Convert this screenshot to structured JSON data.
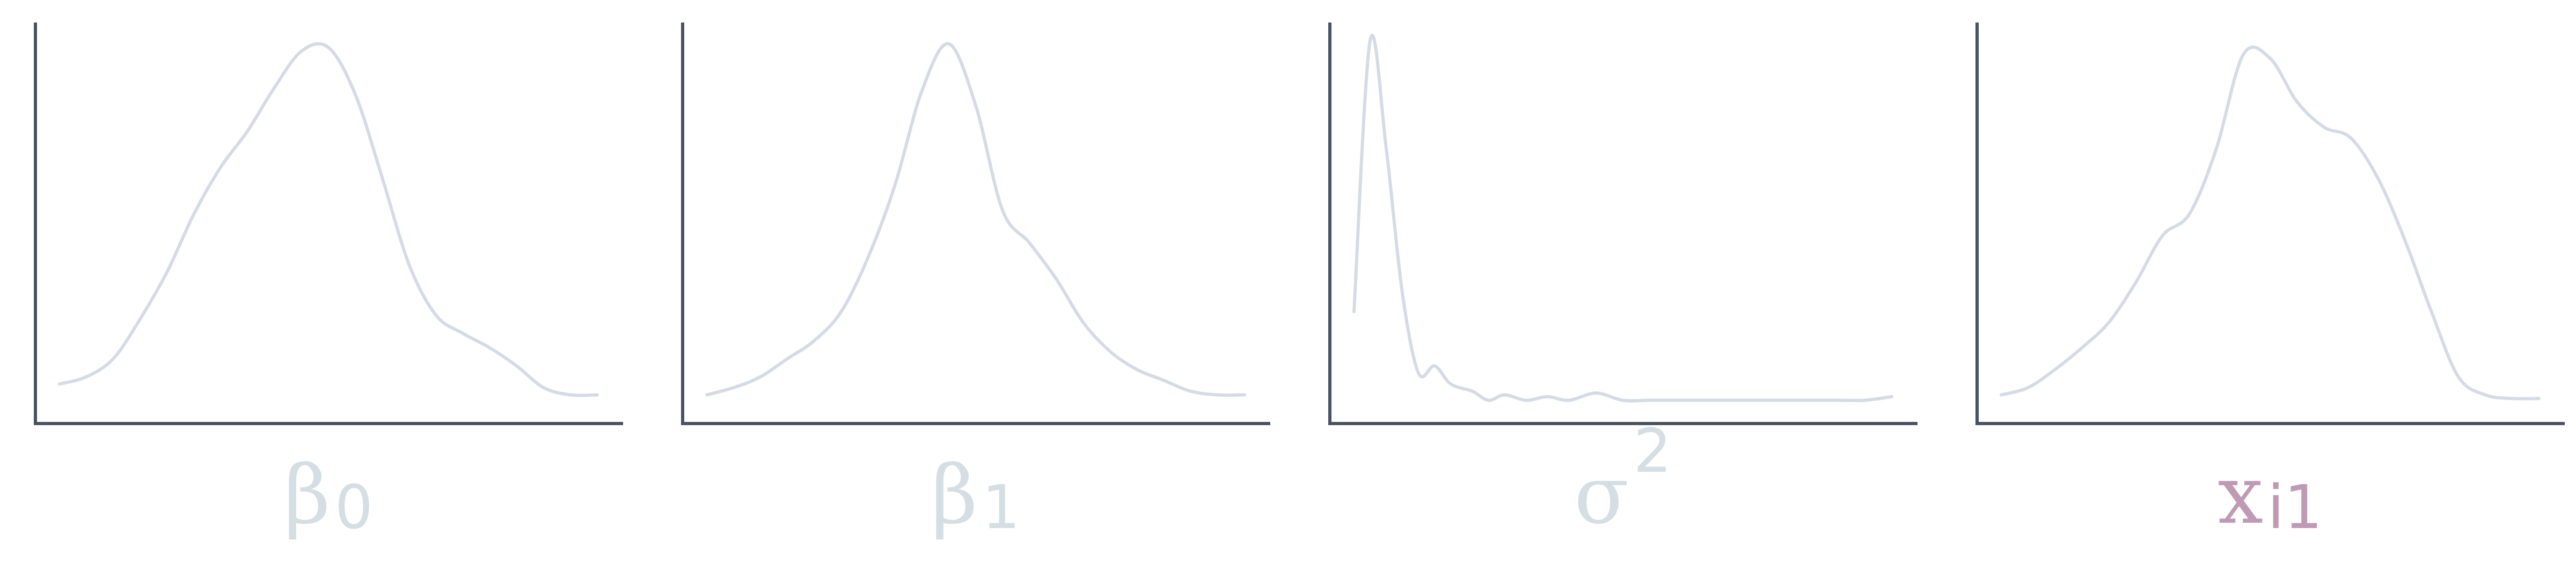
{
  "chart_data": [
    {
      "type": "line",
      "label": {
        "main": "β",
        "sub": "0",
        "sup": ""
      },
      "label_color": "#d5dee3",
      "color": "#d5dbe5",
      "x": [
        0,
        0.05,
        0.1,
        0.15,
        0.2,
        0.25,
        0.3,
        0.35,
        0.4,
        0.45,
        0.5,
        0.55,
        0.6,
        0.65,
        0.7,
        0.75,
        0.8,
        0.85,
        0.9,
        0.95,
        1
      ],
      "y": [
        0.05,
        0.07,
        0.12,
        0.23,
        0.36,
        0.52,
        0.65,
        0.75,
        0.87,
        0.97,
        0.98,
        0.85,
        0.62,
        0.38,
        0.24,
        0.19,
        0.15,
        0.1,
        0.04,
        0.02,
        0.02
      ]
    },
    {
      "type": "line",
      "label": {
        "main": "β",
        "sub": "1",
        "sup": ""
      },
      "label_color": "#d5dee3",
      "color": "#d5dbe5",
      "x": [
        0,
        0.05,
        0.1,
        0.15,
        0.2,
        0.25,
        0.3,
        0.35,
        0.4,
        0.45,
        0.5,
        0.55,
        0.6,
        0.65,
        0.7,
        0.75,
        0.8,
        0.85,
        0.9,
        0.95,
        1
      ],
      "y": [
        0.02,
        0.04,
        0.07,
        0.12,
        0.17,
        0.25,
        0.4,
        0.6,
        0.86,
        0.99,
        0.82,
        0.53,
        0.44,
        0.34,
        0.22,
        0.14,
        0.09,
        0.06,
        0.03,
        0.02,
        0.02
      ]
    },
    {
      "type": "line",
      "label": {
        "main": "σ",
        "sub": "",
        "sup": "2"
      },
      "label_color": "#d5dee3",
      "color": "#d5dbe5",
      "x": [
        0,
        0.03,
        0.06,
        0.09,
        0.12,
        0.15,
        0.18,
        0.22,
        0.25,
        0.28,
        0.32,
        0.36,
        0.4,
        0.45,
        0.5,
        0.55,
        0.6,
        0.7,
        0.8,
        0.9,
        0.95,
        1
      ],
      "y": [
        0.25,
        1.0,
        0.7,
        0.3,
        0.08,
        0.1,
        0.05,
        0.03,
        0.005,
        0.02,
        0.005,
        0.015,
        0.005,
        0.025,
        0.005,
        0.005,
        0.005,
        0.005,
        0.005,
        0.005,
        0.005,
        0.015
      ]
    },
    {
      "type": "line",
      "label": {
        "main": "x",
        "sub": "i1",
        "sup": ""
      },
      "label_color": "#bf9ab5",
      "color": "#d5dbe5",
      "x": [
        0,
        0.05,
        0.1,
        0.15,
        0.2,
        0.25,
        0.3,
        0.35,
        0.4,
        0.45,
        0.5,
        0.55,
        0.6,
        0.65,
        0.7,
        0.75,
        0.8,
        0.85,
        0.9,
        0.95,
        1
      ],
      "y": [
        0.02,
        0.04,
        0.09,
        0.15,
        0.22,
        0.33,
        0.46,
        0.52,
        0.7,
        0.96,
        0.95,
        0.83,
        0.76,
        0.73,
        0.62,
        0.45,
        0.25,
        0.07,
        0.02,
        0.01,
        0.01
      ]
    }
  ]
}
